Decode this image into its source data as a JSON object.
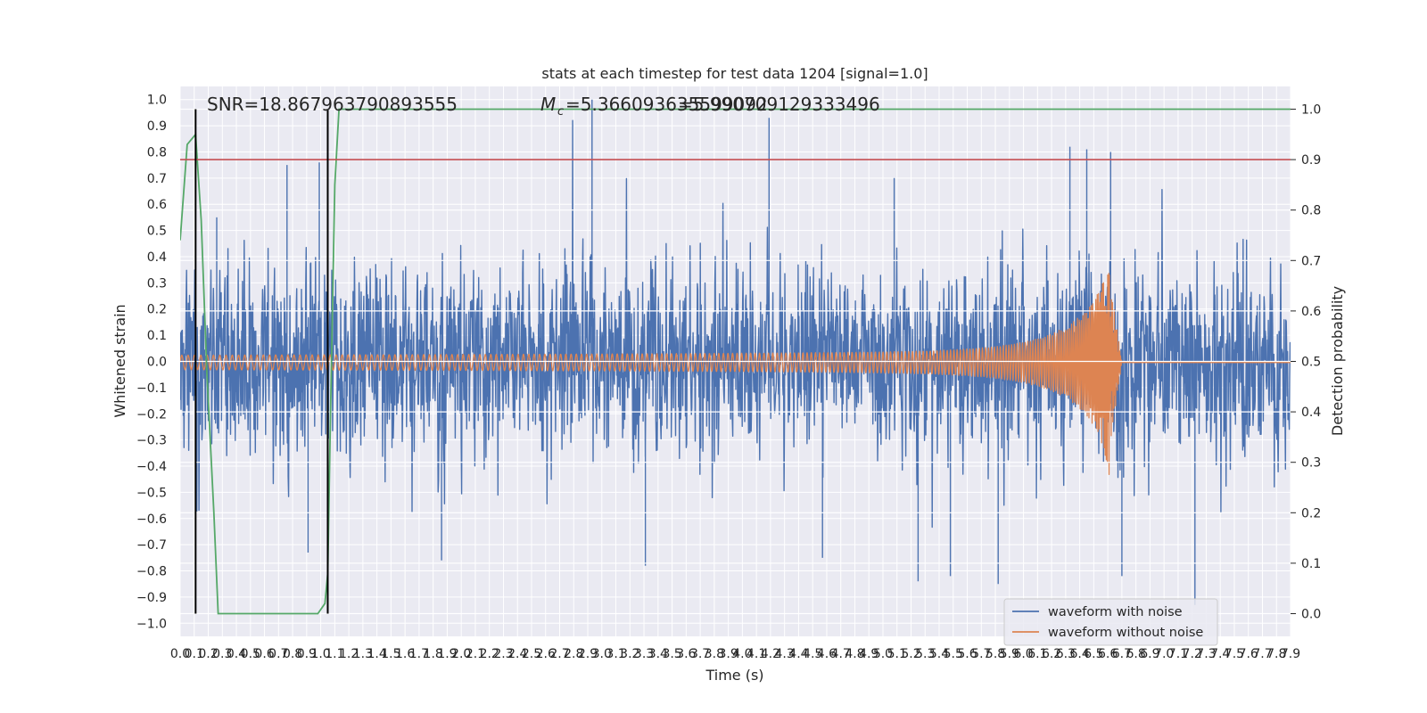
{
  "chart_data": {
    "type": "line",
    "title": "stats at each timestep for test data 1204 [signal=1.0]",
    "xlabel": "Time (s)",
    "ylabel": "Whitened strain",
    "y2label": "Detection probability",
    "xlim": [
      0.0,
      7.9
    ],
    "ylim": [
      -1.05,
      1.05
    ],
    "y2lim": [
      -0.045,
      1.045
    ],
    "grid": true,
    "legend_position": "bottom-right",
    "annotations": {
      "snr": "SNR=18.867963790893555",
      "mc": "=5.366093635599092",
      "mc_overlap": "=5.990709129333496",
      "mc_symbol": "M",
      "mc_subscript": "c"
    },
    "threshold": 0.9,
    "vertical_lines": [
      0.11,
      1.05
    ],
    "series": [
      {
        "name": "waveform with noise",
        "color": "#4c72b0",
        "axis": "left",
        "kind": "noise",
        "envelope": 0.32,
        "seed": 1204,
        "peaks": [
          {
            "t": 2.93,
            "v": 1.0
          },
          {
            "t": 4.19,
            "v": 0.93
          },
          {
            "t": 6.33,
            "v": 0.82
          },
          {
            "t": 6.45,
            "v": 0.81
          },
          {
            "t": 6.62,
            "v": 0.8
          },
          {
            "t": 0.26,
            "v": 0.55
          },
          {
            "t": 0.76,
            "v": 0.75
          },
          {
            "t": 0.99,
            "v": 0.76
          },
          {
            "t": 5.08,
            "v": 0.7
          },
          {
            "t": 7.22,
            "v": -0.93
          },
          {
            "t": 5.25,
            "v": -0.84
          },
          {
            "t": 5.82,
            "v": -0.85
          },
          {
            "t": 5.48,
            "v": -0.82
          },
          {
            "t": 3.31,
            "v": -0.78
          },
          {
            "t": 4.57,
            "v": -0.75
          },
          {
            "t": 6.7,
            "v": -0.82
          },
          {
            "t": 1.86,
            "v": -0.76
          },
          {
            "t": 0.91,
            "v": -0.73
          }
        ]
      },
      {
        "name": "waveform without noise",
        "color": "#dd8452",
        "axis": "left",
        "kind": "chirp",
        "start_amp": 0.028,
        "peak_amp_pos": 0.34,
        "peak_amp_neg": -0.46,
        "merger_time": 6.62,
        "ringdown_end": 6.7,
        "offset": -0.004
      },
      {
        "name": "detection probability",
        "color": "#55a868",
        "axis": "right",
        "kind": "line",
        "x": [
          0.0,
          0.05,
          0.11,
          0.15,
          0.19,
          0.24,
          0.27,
          0.4,
          0.98,
          1.03,
          1.05,
          1.07,
          1.1,
          1.13,
          1.2,
          7.9
        ],
        "y": [
          0.74,
          0.93,
          0.95,
          0.78,
          0.48,
          0.2,
          0.0,
          0.0,
          0.0,
          0.02,
          0.08,
          0.4,
          0.85,
          1.0,
          1.0,
          1.0
        ]
      }
    ],
    "x_ticks": [
      "0.0",
      "0.1",
      "0.2",
      "0.3",
      "0.4",
      "0.5",
      "0.6",
      "0.7",
      "0.8",
      "0.9",
      "1.0",
      "1.1",
      "1.2",
      "1.3",
      "1.4",
      "1.5",
      "1.6",
      "1.7",
      "1.8",
      "1.9",
      "2.0",
      "2.1",
      "2.2",
      "2.3",
      "2.4",
      "2.5",
      "2.6",
      "2.7",
      "2.8",
      "2.9",
      "3.0",
      "3.1",
      "3.2",
      "3.3",
      "3.4",
      "3.5",
      "3.6",
      "3.7",
      "3.8",
      "3.9",
      "4.0",
      "4.1",
      "4.2",
      "4.3",
      "4.4",
      "4.5",
      "4.6",
      "4.7",
      "4.8",
      "4.9",
      "5.0",
      "5.1",
      "5.2",
      "5.3",
      "5.4",
      "5.5",
      "5.6",
      "5.7",
      "5.8",
      "5.9",
      "6.0",
      "6.1",
      "6.2",
      "6.3",
      "6.4",
      "6.5",
      "6.6",
      "6.7",
      "6.8",
      "6.9",
      "7.0",
      "7.1",
      "7.2",
      "7.3",
      "7.4",
      "7.5",
      "7.6",
      "7.7",
      "7.8",
      "7.9"
    ],
    "y_ticks": [
      "1.0",
      "0.9",
      "0.8",
      "0.7",
      "0.6",
      "0.5",
      "0.4",
      "0.3",
      "0.2",
      "0.1",
      "0.0",
      "−0.1",
      "−0.2",
      "−0.3",
      "−0.4",
      "−0.5",
      "−0.6",
      "−0.7",
      "−0.8",
      "−0.9",
      "−1.0"
    ],
    "y2_ticks": [
      "1.0",
      "0.9",
      "0.8",
      "0.7",
      "0.6",
      "0.5",
      "0.4",
      "0.3",
      "0.2",
      "0.1",
      "0.0"
    ]
  }
}
